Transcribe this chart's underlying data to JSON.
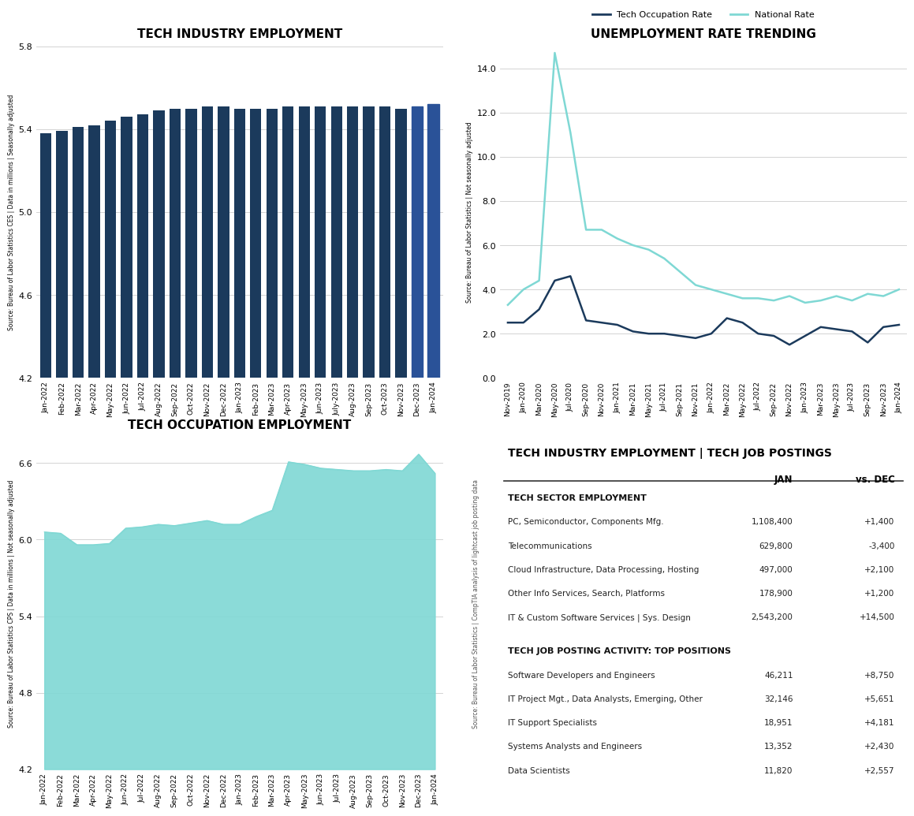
{
  "bar_labels": [
    "Jan-2022",
    "Feb-2022",
    "Mar-2022",
    "Apr-2022",
    "May-2022",
    "Jun-2022",
    "Jul-2022",
    "Aug-2022",
    "Sep-2022",
    "Oct-2022",
    "Nov-2022",
    "Dec-2022",
    "Jan-2023",
    "Feb-2023",
    "Mar-2023",
    "Apr-2023",
    "May-2023",
    "Jun-2023",
    "July-2023",
    "Aug-2023",
    "Sep-2023",
    "Oct-2023",
    "Nov-2023",
    "Dec-2023",
    "Jan-2024"
  ],
  "bar_values": [
    5.38,
    5.39,
    5.41,
    5.42,
    5.44,
    5.46,
    5.47,
    5.49,
    5.5,
    5.5,
    5.51,
    5.51,
    5.5,
    5.5,
    5.5,
    5.51,
    5.51,
    5.51,
    5.51,
    5.51,
    5.51,
    5.51,
    5.5,
    5.51,
    5.52
  ],
  "bar_color": "#1B3A5C",
  "bar_highlight_color": "#2A5298",
  "bar_title": "TECH INDUSTRY EMPLOYMENT",
  "bar_ylabel": "Source: Bureau of Labor Statistics CES | Data in millions | Seasonally adjusted",
  "bar_ylim": [
    4.2,
    5.8
  ],
  "bar_yticks": [
    4.2,
    4.6,
    5.0,
    5.4,
    5.8
  ],
  "unemp_labels": [
    "Nov-2019",
    "Jan-2020",
    "Mar-2020",
    "May-2020",
    "Jul-2020",
    "Sep-2020",
    "Nov-2020",
    "Jan-2021",
    "Mar-2021",
    "May-2021",
    "Jul-2021",
    "Sep-2021",
    "Nov-2021",
    "Jan-2022",
    "Mar-2022",
    "May-2022",
    "Jul-2022",
    "Sep-2022",
    "Nov-2022",
    "Jan-2023",
    "Mar-2023",
    "May-2023",
    "Jul-2023",
    "Sep-2023",
    "Nov-2023",
    "Jan-2024"
  ],
  "unemp_tech": [
    2.5,
    2.5,
    3.1,
    4.4,
    4.6,
    2.6,
    2.5,
    2.4,
    2.1,
    2.0,
    2.0,
    1.9,
    1.8,
    2.0,
    2.7,
    2.5,
    2.0,
    1.9,
    1.5,
    1.9,
    2.3,
    2.2,
    2.1,
    1.6,
    2.3,
    2.4
  ],
  "unemp_national": [
    3.3,
    4.0,
    4.4,
    14.7,
    11.1,
    6.7,
    6.7,
    6.3,
    6.0,
    5.8,
    5.4,
    4.8,
    4.2,
    4.0,
    3.8,
    3.6,
    3.6,
    3.5,
    3.7,
    3.4,
    3.5,
    3.7,
    3.5,
    3.8,
    3.7,
    4.0
  ],
  "unemp_title": "UNEMPLOYMENT RATE TRENDING",
  "unemp_ylabel": "Source: Bureau of Labor Statistics | Not seasonally adjusted",
  "unemp_ylim": [
    0.0,
    15.0
  ],
  "unemp_yticks": [
    0.0,
    2.0,
    4.0,
    6.0,
    8.0,
    10.0,
    12.0,
    14.0
  ],
  "unemp_tech_color": "#1B3A5C",
  "unemp_national_color": "#7FD8D4",
  "area_labels": [
    "Jan-2022",
    "Feb-2022",
    "Mar-2022",
    "Apr-2022",
    "May-2022",
    "Jun-2022",
    "Jul-2022",
    "Aug-2022",
    "Sep-2022",
    "Oct-2022",
    "Nov-2022",
    "Dec-2022",
    "Jan-2023",
    "Feb-2023",
    "Mar-2023",
    "Apr-2023",
    "May-2023",
    "Jun-2023",
    "Jul-2023",
    "Aug-2023",
    "Sep-2023",
    "Oct-2023",
    "Nov-2023",
    "Dec-2023",
    "Jan-2024"
  ],
  "area_values": [
    6.06,
    6.05,
    5.96,
    5.96,
    5.97,
    6.09,
    6.1,
    6.12,
    6.11,
    6.13,
    6.15,
    6.12,
    6.12,
    6.18,
    6.23,
    6.61,
    6.59,
    6.56,
    6.55,
    6.54,
    6.54,
    6.55,
    6.54,
    6.67,
    6.52
  ],
  "area_color": "#7FD8D4",
  "area_title": "TECH OCCUPATION EMPLOYMENT",
  "area_ylabel": "Source: Bureau of Labor Statistics CPS | Data in millions | Not seasonally adjusted",
  "area_ylim": [
    4.2,
    6.8
  ],
  "area_yticks": [
    4.2,
    4.8,
    5.4,
    6.0,
    6.6
  ],
  "table_title": "TECH INDUSTRY EMPLOYMENT | TECH JOB POSTINGS",
  "table_source": "Source: Bureau of Labor Statistics | CompTIA analysis of lightcast job posting data",
  "table_col_headers": [
    "JAN",
    "vs. DEC"
  ],
  "table_sections": [
    {
      "header": "TECH SECTOR EMPLOYMENT",
      "rows": [
        [
          "PC, Semiconductor, Components Mfg.",
          "1,108,400",
          "+1,400"
        ],
        [
          "Telecommunications",
          "629,800",
          "-3,400"
        ],
        [
          "Cloud Infrastructure, Data Processing, Hosting",
          "497,000",
          "+2,100"
        ],
        [
          "Other Info Services, Search, Platforms",
          "178,900",
          "+1,200"
        ],
        [
          "IT & Custom Software Services | Sys. Design",
          "2,543,200",
          "+14,500"
        ]
      ]
    },
    {
      "header": "TECH JOB POSTING ACTIVITY: TOP POSITIONS",
      "rows": [
        [
          "Software Developers and Engineers",
          "46,211",
          "+8,750"
        ],
        [
          "IT Project Mgt., Data Analysts, Emerging, Other",
          "32,146",
          "+5,651"
        ],
        [
          "IT Support Specialists",
          "18,951",
          "+4,181"
        ],
        [
          "Systems Analysts and Engineers",
          "13,352",
          "+2,430"
        ],
        [
          "Data Scientists",
          "11,820",
          "+2,557"
        ]
      ]
    }
  ],
  "bg_color": "#FFFFFF",
  "grid_color": "#CCCCCC"
}
